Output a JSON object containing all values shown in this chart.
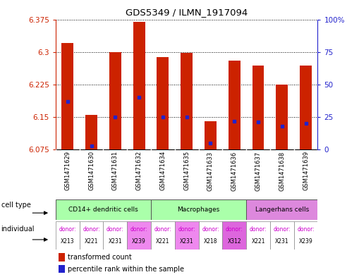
{
  "title": "GDS5349 / ILMN_1917094",
  "samples": [
    "GSM1471629",
    "GSM1471630",
    "GSM1471631",
    "GSM1471632",
    "GSM1471634",
    "GSM1471635",
    "GSM1471633",
    "GSM1471636",
    "GSM1471637",
    "GSM1471638",
    "GSM1471639"
  ],
  "transformed_counts": [
    6.32,
    6.155,
    6.3,
    6.37,
    6.288,
    6.298,
    6.14,
    6.28,
    6.268,
    6.225,
    6.268
  ],
  "percentile_ranks": [
    37,
    3,
    25,
    40,
    25,
    25,
    5,
    22,
    21,
    18,
    20
  ],
  "ymin": 6.075,
  "ymax": 6.375,
  "yticks": [
    6.075,
    6.15,
    6.225,
    6.3,
    6.375
  ],
  "right_yticks": [
    0,
    25,
    50,
    75,
    100
  ],
  "cell_types": [
    {
      "label": "CD14+ dendritic cells",
      "start": 0,
      "end": 4,
      "color": "#aaffaa"
    },
    {
      "label": "Macrophages",
      "start": 4,
      "end": 8,
      "color": "#aaffaa"
    },
    {
      "label": "Langerhans cells",
      "start": 8,
      "end": 11,
      "color": "#dd88dd"
    }
  ],
  "individuals": [
    {
      "donor": "X213",
      "col": 0,
      "color": "#ffffff"
    },
    {
      "donor": "X221",
      "col": 1,
      "color": "#ffffff"
    },
    {
      "donor": "X231",
      "col": 2,
      "color": "#ffffff"
    },
    {
      "donor": "X239",
      "col": 3,
      "color": "#ee88ee"
    },
    {
      "donor": "X221",
      "col": 4,
      "color": "#ffffff"
    },
    {
      "donor": "X231",
      "col": 5,
      "color": "#ee88ee"
    },
    {
      "donor": "X218",
      "col": 6,
      "color": "#ffffff"
    },
    {
      "donor": "X312",
      "col": 7,
      "color": "#dd66dd"
    },
    {
      "donor": "X221",
      "col": 8,
      "color": "#ffffff"
    },
    {
      "donor": "X231",
      "col": 9,
      "color": "#ffffff"
    },
    {
      "donor": "X239",
      "col": 10,
      "color": "#ffffff"
    }
  ],
  "bar_color": "#cc2200",
  "dot_color": "#2222cc",
  "bar_width": 0.5,
  "bg_color": "#ffffff",
  "grid_color": "#333333",
  "left_axis_color": "#cc2200",
  "right_axis_color": "#2222cc",
  "sample_bg_color": "#cccccc",
  "cell_type_border_color": "#44aa44",
  "langerhans_color": "#cc66cc"
}
